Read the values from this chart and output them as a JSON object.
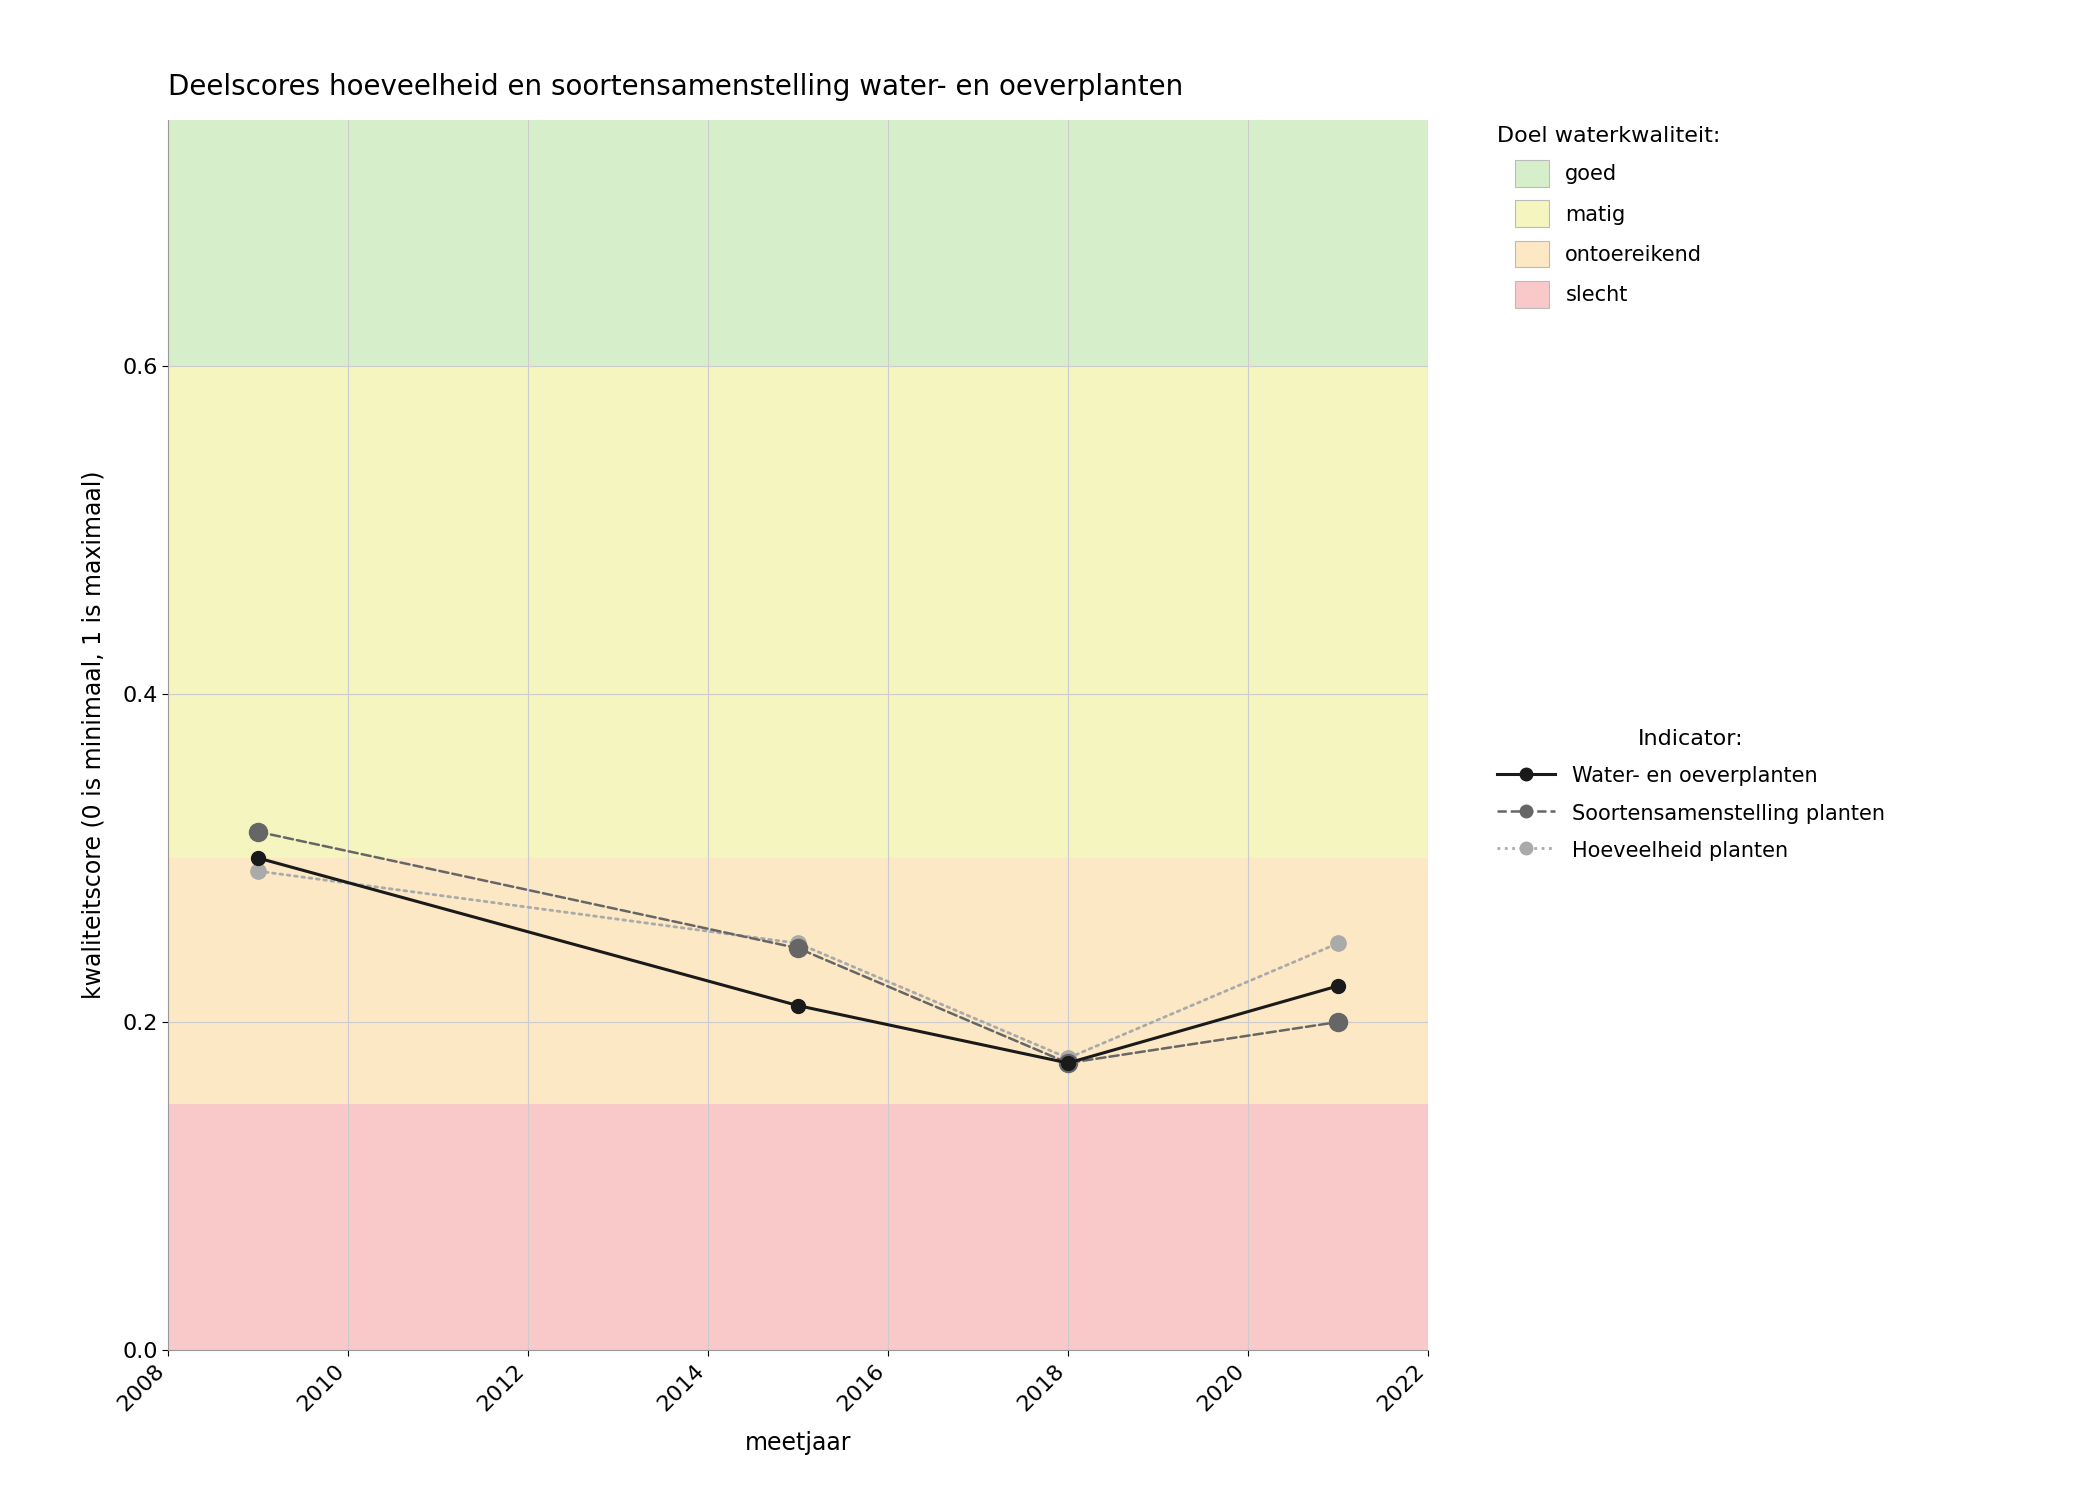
{
  "title": "Deelscores hoeveelheid en soortensamenstelling water- en oeverplanten",
  "xlabel": "meetjaar",
  "ylabel": "kwaliteitscore (0 is minimaal, 1 is maximaal)",
  "xlim": [
    2008,
    2022
  ],
  "ylim": [
    0.0,
    0.75
  ],
  "yticks": [
    0.0,
    0.2,
    0.4,
    0.6
  ],
  "xticks": [
    2008,
    2010,
    2012,
    2014,
    2016,
    2018,
    2020,
    2022
  ],
  "bg_colors": {
    "goed": "#d6efca",
    "matig": "#f5f5c0",
    "ontoereikend": "#fce8c4",
    "slecht": "#f9c8c8"
  },
  "bg_ranges": {
    "goed": [
      0.6,
      0.75
    ],
    "matig": [
      0.3,
      0.6
    ],
    "ontoereikend": [
      0.15,
      0.3
    ],
    "slecht": [
      0.0,
      0.15
    ]
  },
  "series": {
    "water_en_oeverplanten": {
      "years": [
        2009,
        2015,
        2018,
        2021
      ],
      "values": [
        0.3,
        0.21,
        0.175,
        0.222
      ],
      "color": "#1a1a1a",
      "linestyle": "solid",
      "linewidth": 2.2,
      "marker": "o",
      "markersize": 10,
      "label": "Water- en oeverplanten",
      "zorder": 5
    },
    "soortensamenstelling": {
      "years": [
        2009,
        2015,
        2018,
        2021
      ],
      "values": [
        0.316,
        0.245,
        0.175,
        0.2
      ],
      "color": "#666666",
      "linestyle": "dashed",
      "linewidth": 1.8,
      "marker": "o",
      "markersize": 13,
      "label": "Soortensamenstelling planten",
      "zorder": 4
    },
    "hoeveelheid": {
      "years": [
        2009,
        2015,
        2018,
        2021
      ],
      "values": [
        0.292,
        0.248,
        0.178,
        0.248
      ],
      "color": "#aaaaaa",
      "linestyle": "dotted",
      "linewidth": 2.0,
      "marker": "o",
      "markersize": 11,
      "label": "Hoeveelheid planten",
      "zorder": 3
    }
  },
  "legend_title_doel": "Doel waterkwaliteit:",
  "legend_title_indicator": "Indicator:",
  "bg_color_fig": "#ffffff",
  "grid_color": "#cccccc",
  "grid_linewidth": 0.8,
  "title_fontsize": 20,
  "label_fontsize": 17,
  "tick_fontsize": 16,
  "legend_fontsize": 15,
  "legend_title_fontsize": 16
}
